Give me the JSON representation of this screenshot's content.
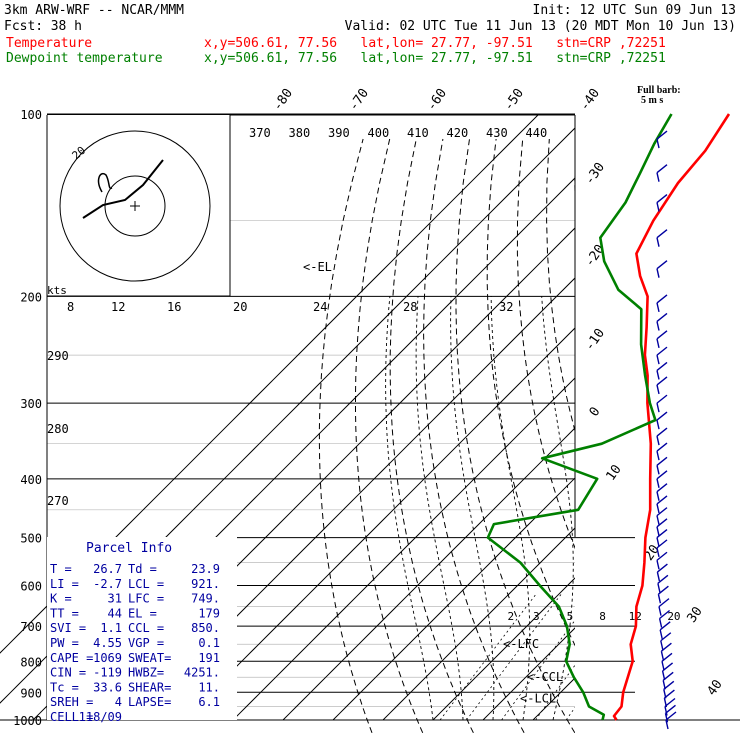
{
  "header": {
    "model": "3km ARW-WRF -- NCAR/MMM",
    "init": "Init: 12 UTC Sun 09 Jun 13",
    "fcst_label": "Fcst:",
    "fcst_value": "38 h",
    "valid": "Valid: 02 UTC Tue 11 Jun 13 (20 MDT Mon 10 Jun 13)",
    "legend": [
      {
        "name": "Temperature",
        "info": "x,y=506.61, 77.56   lat,lon= 27.77, -97.51   stn=CRP ,72251",
        "color": "#ff0000"
      },
      {
        "name": "Dewpoint temperature",
        "info": "x,y=506.61, 77.56   lat,lon= 27.77, -97.51   stn=CRP ,72251",
        "color": "#008000"
      }
    ],
    "barb_legend": [
      "Full barb:",
      "5 m s"
    ]
  },
  "chart_data": {
    "type": "line",
    "title": "Skew-T log-P",
    "xlabel": "",
    "ylabel": "",
    "pressure_levels": [
      100,
      200,
      300,
      400,
      500,
      600,
      700,
      800,
      900,
      1000
    ],
    "pressure_range": [
      1000,
      100
    ],
    "isotherm_labels_top": [
      -80,
      -70,
      -60,
      -50,
      -40
    ],
    "isotherm_labels_right": [
      -30,
      -20,
      -10,
      0,
      10,
      20,
      30,
      40
    ],
    "theta_e_labels": [
      370,
      380,
      390,
      400,
      410,
      420,
      430,
      440
    ],
    "theta_labels": [
      290,
      280,
      270
    ],
    "mixing_ratio_labels": [
      2,
      3,
      5,
      8,
      12,
      20
    ],
    "hodograph_speed_labels": [
      8,
      12,
      16,
      20,
      24,
      28,
      32
    ],
    "hodograph_units": "kts",
    "hodograph_ring_label": "20",
    "series": [
      {
        "name": "Temperature",
        "color": "#ff0000",
        "points": [
          [
            1000,
            26.7
          ],
          [
            985,
            25.4
          ],
          [
            950,
            25.0
          ],
          [
            900,
            22.5
          ],
          [
            850,
            20.4
          ],
          [
            800,
            18.2
          ],
          [
            750,
            14.4
          ],
          [
            700,
            11.8
          ],
          [
            650,
            8.0
          ],
          [
            600,
            5.0
          ],
          [
            550,
            0.8
          ],
          [
            500,
            -4.0
          ],
          [
            450,
            -8.6
          ],
          [
            400,
            -14.8
          ],
          [
            350,
            -21.7
          ],
          [
            300,
            -30.5
          ],
          [
            270,
            -36.0
          ],
          [
            250,
            -40.6
          ],
          [
            225,
            -45.8
          ],
          [
            200,
            -51.8
          ],
          [
            185,
            -57.4
          ],
          [
            170,
            -62.6
          ],
          [
            150,
            -65.8
          ],
          [
            130,
            -68.4
          ],
          [
            115,
            -69.4
          ],
          [
            100,
            -72.0
          ]
        ]
      },
      {
        "name": "Dewpoint temperature",
        "color": "#008000",
        "points": [
          [
            1000,
            23.9
          ],
          [
            980,
            23.1
          ],
          [
            950,
            18.5
          ],
          [
            900,
            14.5
          ],
          [
            850,
            9.6
          ],
          [
            800,
            4.9
          ],
          [
            750,
            2.2
          ],
          [
            700,
            -2.0
          ],
          [
            650,
            -7.5
          ],
          [
            600,
            -15.5
          ],
          [
            550,
            -24.0
          ],
          [
            500,
            -35.5
          ],
          [
            475,
            -37.0
          ],
          [
            450,
            -23.0
          ],
          [
            400,
            -25.4
          ],
          [
            370,
            -40.5
          ],
          [
            350,
            -31.5
          ],
          [
            320,
            -25.5
          ],
          [
            300,
            -30.0
          ],
          [
            270,
            -36.5
          ],
          [
            240,
            -43.5
          ],
          [
            210,
            -50.5
          ],
          [
            195,
            -59.0
          ],
          [
            175,
            -67.5
          ],
          [
            160,
            -73.0
          ],
          [
            140,
            -75.0
          ],
          [
            125,
            -78.0
          ],
          [
            112,
            -81.0
          ],
          [
            100,
            -83.5
          ]
        ]
      }
    ],
    "annotations": [
      "<-EL",
      "<-LFC",
      "<-CCL",
      "<-LCL"
    ],
    "annotation_pressures": [
      179,
      749,
      850,
      921
    ]
  },
  "parcel_info": {
    "title": "Parcel Info",
    "rows": [
      [
        "T   =",
        "26.7",
        "Td  =",
        "23.9"
      ],
      [
        "LI  =",
        "-2.7",
        "LCL =",
        "921."
      ],
      [
        "K   =",
        "31",
        "LFC =",
        "749."
      ],
      [
        "TT  =",
        "44",
        "EL  =",
        "179"
      ],
      [
        "SVI =",
        "1.1",
        "CCL =",
        "850."
      ],
      [
        "PW  =",
        "4.55",
        "VGP =",
        "0.1"
      ],
      [
        "CAPE =",
        "1069",
        "SWEAT=",
        "191"
      ],
      [
        "CIN  =",
        "-119",
        "HWBZ=",
        "4251."
      ],
      [
        "Tc  =",
        "33.6",
        "SHEAR=",
        "11."
      ],
      [
        "SREH =",
        "4",
        "LAPSE=",
        "6.1"
      ],
      [
        "CELL =",
        "118/09",
        "",
        ""
      ]
    ]
  },
  "colors": {
    "temperature": "#ff0000",
    "dewpoint": "#008000",
    "barbs": "#0000a0",
    "grid": "#000000"
  }
}
